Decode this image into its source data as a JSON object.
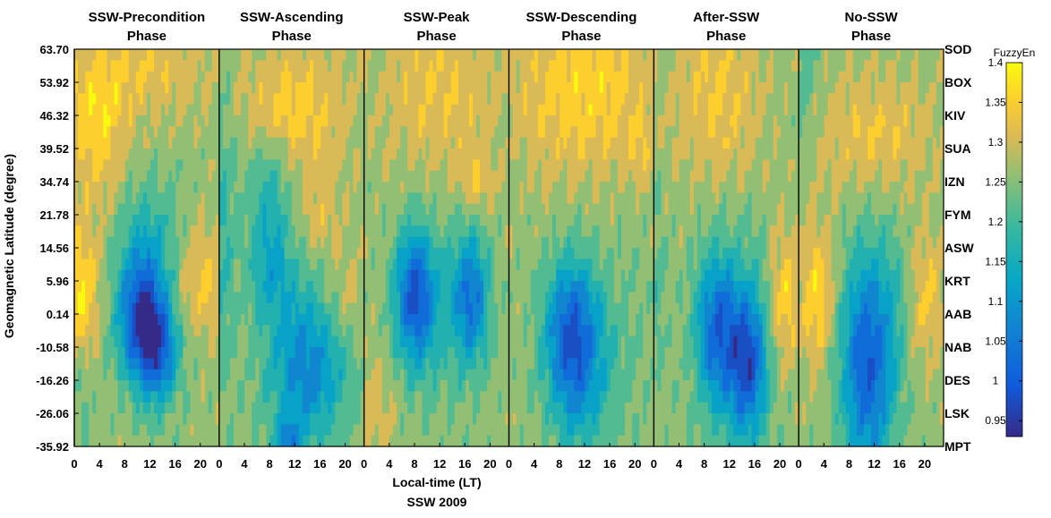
{
  "chart_data": {
    "type": "heatmap",
    "panels": [
      {
        "title_line1": "SSW-Precondition",
        "title_line2": "Phase"
      },
      {
        "title_line1": "SSW-Ascending",
        "title_line2": "Phase"
      },
      {
        "title_line1": "SSW-Peak",
        "title_line2": "Phase"
      },
      {
        "title_line1": "SSW-Descending",
        "title_line2": "Phase"
      },
      {
        "title_line1": "After-SSW",
        "title_line2": "Phase"
      },
      {
        "title_line1": "No-SSW",
        "title_line2": "Phase"
      }
    ],
    "x_ticks": [
      "0",
      "4",
      "8",
      "12",
      "16",
      "20"
    ],
    "x_range": [
      0,
      23
    ],
    "y_tick_labels": [
      "63.70",
      "53.92",
      "46.32",
      "39.52",
      "34.74",
      "21.78",
      "14.56",
      "5.96",
      "0.14",
      "-10.58",
      "-16.26",
      "-26.06",
      "-35.92"
    ],
    "stations": [
      "SOD",
      "BOX",
      "KIV",
      "SUA",
      "IZN",
      "FYM",
      "ASW",
      "KRT",
      "AAB",
      "NAB",
      "DES",
      "LSK",
      "MPT"
    ],
    "xlabel": "Local-time (LT)",
    "ylabel": "Geomagnetic Latitude (degree)",
    "subtitle": "SSW 2009",
    "colorbar": {
      "label": "FuzzyEn",
      "range": [
        0.93,
        1.4
      ],
      "ticks": [
        "1.4",
        "1.35",
        "1.3",
        "1.25",
        "1.2",
        "1.15",
        "1.1",
        "1.05",
        "1",
        "0.95"
      ],
      "tick_values": [
        1.4,
        1.35,
        1.3,
        1.25,
        1.2,
        1.15,
        1.1,
        1.05,
        1.0,
        0.95
      ],
      "colormap": "parula"
    },
    "base_level": 1.26,
    "features": [
      [
        {
          "t": 3.5,
          "l": 2.3,
          "st": 3.5,
          "sl": 1.6,
          "a": 0.1
        },
        {
          "t": 10.5,
          "l": 8.2,
          "st": 2.6,
          "sl": 1.3,
          "a": -0.26
        },
        {
          "t": 13.5,
          "l": 9.2,
          "st": 2.2,
          "sl": 1.1,
          "a": -0.2
        },
        {
          "t": 12,
          "l": 6,
          "st": 3.5,
          "sl": 1.5,
          "a": -0.1
        },
        {
          "t": 20,
          "l": 7,
          "st": 3,
          "sl": 1.2,
          "a": 0.08
        },
        {
          "t": 1,
          "l": 7.5,
          "st": 2,
          "sl": 1.5,
          "a": 0.13
        },
        {
          "t": 12,
          "l": 0.5,
          "st": 7,
          "sl": 1.2,
          "a": 0.06
        },
        {
          "t": 1,
          "l": 10,
          "st": 1.5,
          "sl": 1.5,
          "a": -0.05
        }
      ],
      [
        {
          "t": 12,
          "l": 1.8,
          "st": 6,
          "sl": 1.4,
          "a": 0.09
        },
        {
          "t": 8,
          "l": 4,
          "st": 2.5,
          "sl": 1.1,
          "a": -0.09
        },
        {
          "t": 16,
          "l": 5,
          "st": 2.5,
          "sl": 1.0,
          "a": 0.05
        },
        {
          "t": 8,
          "l": 6.5,
          "st": 2.5,
          "sl": 1.1,
          "a": -0.12
        },
        {
          "t": 14,
          "l": 9.5,
          "st": 4.5,
          "sl": 1.8,
          "a": -0.19
        },
        {
          "t": 20,
          "l": 7.5,
          "st": 3,
          "sl": 1.0,
          "a": 0.06
        },
        {
          "t": 0.5,
          "l": 5.5,
          "st": 1.5,
          "sl": 3,
          "a": -0.08
        },
        {
          "t": 11,
          "l": 12,
          "st": 1.5,
          "sl": 0.6,
          "a": -0.16
        }
      ],
      [
        {
          "t": 12,
          "l": 1.3,
          "st": 7,
          "sl": 1.7,
          "a": 0.07
        },
        {
          "t": 8,
          "l": 7.5,
          "st": 2.2,
          "sl": 1.4,
          "a": -0.25
        },
        {
          "t": 17,
          "l": 7.5,
          "st": 2,
          "sl": 1.4,
          "a": -0.2
        },
        {
          "t": 12,
          "l": 8,
          "st": 4,
          "sl": 2,
          "a": -0.06
        },
        {
          "t": 18,
          "l": 4,
          "st": 2,
          "sl": 0.7,
          "a": 0.06
        },
        {
          "t": 2,
          "l": 11,
          "st": 2,
          "sl": 1.5,
          "a": 0.05
        }
      ],
      [
        {
          "t": 12,
          "l": 1.2,
          "st": 8,
          "sl": 1.9,
          "a": 0.1
        },
        {
          "t": 21,
          "l": 3.0,
          "st": 1.5,
          "sl": 0.6,
          "a": 0.05
        },
        {
          "t": 10,
          "l": 8.5,
          "st": 3,
          "sl": 1.5,
          "a": -0.23
        },
        {
          "t": 11,
          "l": 10.5,
          "st": 3.5,
          "sl": 1.6,
          "a": -0.09
        },
        {
          "t": 17,
          "l": 9,
          "st": 5,
          "sl": 2.5,
          "a": -0.03
        }
      ],
      [
        {
          "t": 10,
          "l": 1.6,
          "st": 5,
          "sl": 1.8,
          "a": 0.08
        },
        {
          "t": 10,
          "l": 8.5,
          "st": 2.3,
          "sl": 1.5,
          "a": -0.2
        },
        {
          "t": 15,
          "l": 9.5,
          "st": 2.1,
          "sl": 1.6,
          "a": -0.24
        },
        {
          "t": 21,
          "l": 7.5,
          "st": 1.8,
          "sl": 1.3,
          "a": 0.1
        },
        {
          "t": 12,
          "l": 9,
          "st": 4,
          "sl": 3,
          "a": -0.06
        },
        {
          "t": 0.5,
          "l": 7,
          "st": 1,
          "sl": 2,
          "a": -0.05
        }
      ],
      [
        {
          "t": 12,
          "l": 2.6,
          "st": 7,
          "sl": 1.3,
          "a": 0.07
        },
        {
          "t": 11,
          "l": 9.5,
          "st": 3,
          "sl": 2.4,
          "a": -0.26
        },
        {
          "t": 16,
          "l": 7.5,
          "st": 2,
          "sl": 1.3,
          "a": -0.04
        },
        {
          "t": 3,
          "l": 7.5,
          "st": 2,
          "sl": 1.4,
          "a": 0.11
        },
        {
          "t": 20,
          "l": 7.5,
          "st": 2.2,
          "sl": 1.3,
          "a": 0.08
        },
        {
          "t": 0.5,
          "l": 1,
          "st": 1.5,
          "sl": 1.5,
          "a": -0.06
        }
      ]
    ]
  }
}
